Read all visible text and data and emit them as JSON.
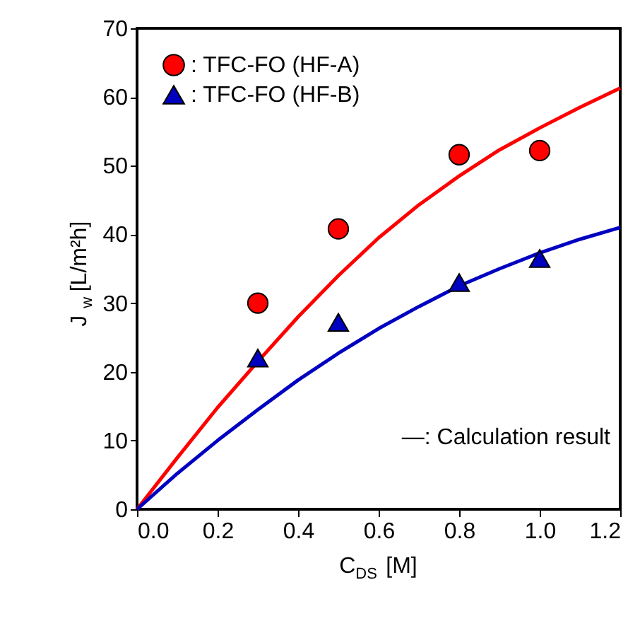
{
  "chart_data": {
    "type": "scatter",
    "xlabel": "C$_{DS}$ [M]",
    "ylabel": "J$_{w}$ [L/m²h]",
    "xlim": [
      0,
      1.2
    ],
    "xticks": [
      {
        "value": 0,
        "label": "0.0"
      },
      0.2,
      0.4,
      0.6,
      0.8,
      {
        "value": 1,
        "label": "1.0"
      },
      1.2
    ],
    "ylim": [
      0,
      70
    ],
    "yticks": [
      0,
      10,
      20,
      30,
      40,
      50,
      60,
      70
    ],
    "grid": false,
    "legend": "top left",
    "series": [
      {
        "name": ": TFC-FO (HF-A)",
        "marker": "circle",
        "color": "#ff0000",
        "x": [
          0.3,
          0.5,
          0.8,
          1.0
        ],
        "values": [
          30,
          40.8,
          51.6,
          52.2
        ]
      },
      {
        "name": ": TFC-FO (HF-B)",
        "marker": "triangle",
        "color": "#0000c0",
        "x": [
          0.3,
          0.5,
          0.8,
          1.0
        ],
        "values": [
          22,
          27.2,
          33,
          36.5
        ]
      },
      {
        "type": "line",
        "color": "#ff0000",
        "line_style": "solid",
        "x": [
          0,
          0.1,
          0.2,
          0.3,
          0.4,
          0.5,
          0.6,
          0.7,
          0.8,
          0.9,
          1.0,
          1.1,
          1.2
        ],
        "values": [
          0,
          7.5,
          14.8,
          21.5,
          28,
          34,
          39.5,
          44.3,
          48.5,
          52.3,
          55.5,
          58.5,
          61.3
        ]
      },
      {
        "type": "line",
        "color": "#0000c0",
        "line_style": "solid",
        "x": [
          0,
          0.1,
          0.2,
          0.3,
          0.4,
          0.5,
          0.6,
          0.7,
          0.8,
          0.9,
          1.0,
          1.1,
          1.2
        ],
        "values": [
          0,
          5.2,
          10,
          14.5,
          18.8,
          22.7,
          26.3,
          29.5,
          32.5,
          35,
          37.3,
          39.3,
          41
        ]
      }
    ],
    "annotations": [
      "—: Calculation result"
    ]
  }
}
